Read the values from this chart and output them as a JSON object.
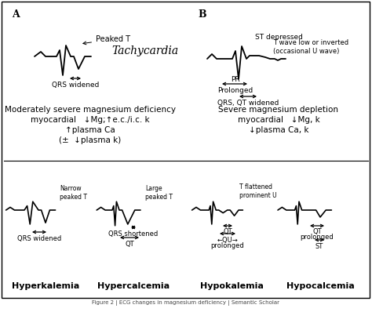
{
  "title_A": "A",
  "title_B": "B",
  "label_tachycardia": "Tachycardia",
  "label_peaked_T_A": "Peaked T",
  "label_QRS_widened_A": "QRS widened",
  "label_ST_depressed": "ST depressed",
  "label_T_wave": "T wave low or inverted\n(occasional U wave)",
  "label_PR": "PR",
  "label_Prolonged": "Prolonged",
  "label_QRS_QT": "QRS, QT widened",
  "text_mod_severe": "Moderately severe magnesium deficiency",
  "text_mod_myocardial": "myocardial   ↓Mg;↑e.c./i.c. k",
  "text_mod_plasma_ca": "↑plasma Ca",
  "text_mod_plasma_k": "(±  ↓plasma k)",
  "text_severe": "Severe magnesium depletion",
  "text_severe_myocardial": "myocardial   ↓Mg, k",
  "text_severe_plasma": "↓plasma Ca, k",
  "label_narrow": "Narrow\npeaked T",
  "label_large": "Large\npeaked T",
  "label_QRS_widened_hyper": "QRS widened",
  "label_QRS_shortened": "QRS shortened",
  "label_QT_hyper": "QT",
  "label_T_flat": "T flattened\nprominent U",
  "label_QT_hypo": "QT",
  "label_QU": "←QU→",
  "label_QU_prolonged": "prolonged",
  "label_QT_hypoca": "QT",
  "label_prolonged": "prolonged",
  "label_ST": "ST",
  "label_hyperkalemia": "Hyperkalemia",
  "label_hypercalcemia": "Hypercalcemia",
  "label_hypokalemia": "Hypokalemia",
  "label_hypocalcemia": "Hypocalcemia"
}
